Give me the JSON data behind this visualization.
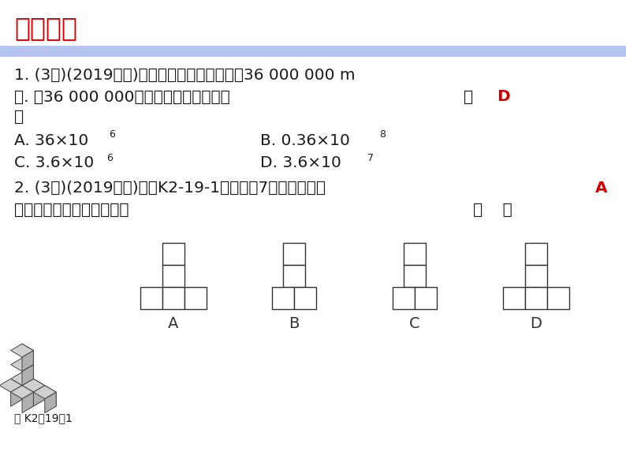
{
  "bg_color": "#ffffff",
  "title": "课后作业",
  "title_color": "#cc0000",
  "bar_color": "#aabbee",
  "text_color": "#1a1a1a",
  "answer_color": "#cc0000",
  "figure_label": "图 K2－19－1",
  "line1": "1. (3分)(2019淮安)同步卫星在赤道上空大约36 000 000 m",
  "line2_main": "处. 将36 000 000用科学记数法表示应为",
  "line2_bracket": "（ ",
  "line2_answer": "D",
  "line2_end": "",
  "line3": "）",
  "optA_main": "A. 36×10",
  "optA_sup": "6",
  "optB_main": "B. 0.36×10",
  "optB_sup": "8",
  "optC_main": "C. 3.6×10",
  "optC_sup": "6",
  "optD_main": "D. 3.6×10",
  "optD_sup": "7",
  "q2_line1": "2. (3分)(2019鄂州)如图K2-19-1所示是由7个小正方体组",
  "q2_line1_end": "A",
  "q2_line2": "成的几何体，则其左视图为",
  "q2_bracket": "（    ）"
}
